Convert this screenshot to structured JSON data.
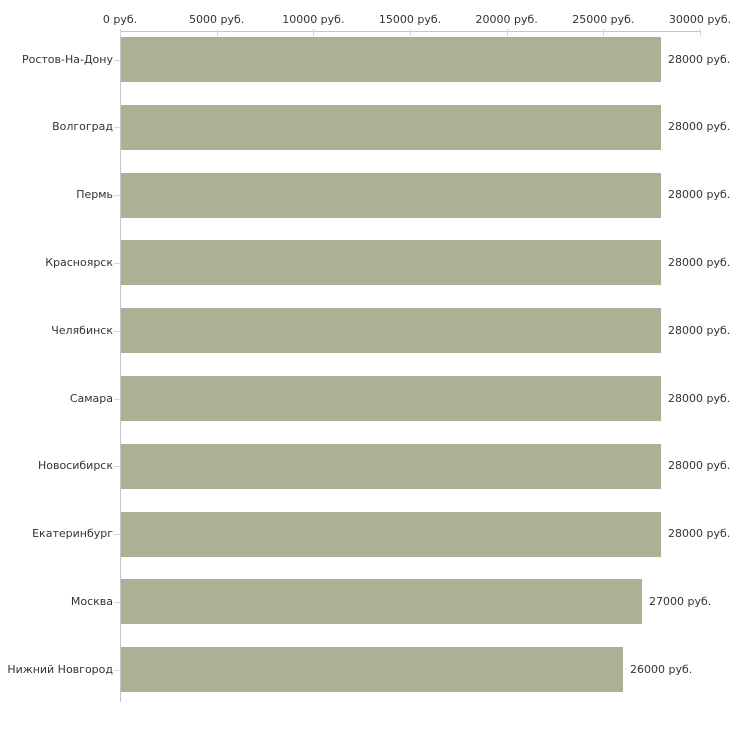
{
  "chart_data": {
    "type": "bar",
    "orientation": "horizontal",
    "title": "",
    "xlabel": "",
    "ylabel": "",
    "unit": "руб.",
    "categories": [
      "Ростов-На-Дону",
      "Волгоград",
      "Пермь",
      "Красноярск",
      "Челябинск",
      "Самара",
      "Новосибирск",
      "Екатеринбург",
      "Москва",
      "Нижний Новгород"
    ],
    "values": [
      28000,
      28000,
      28000,
      28000,
      28000,
      28000,
      28000,
      28000,
      27000,
      26000
    ],
    "value_labels": [
      "28000 руб.",
      "28000 руб.",
      "28000 руб.",
      "28000 руб.",
      "28000 руб.",
      "28000 руб.",
      "28000 руб.",
      "28000 руб.",
      "27000 руб.",
      "26000 руб."
    ],
    "x_ticks": [
      0,
      5000,
      10000,
      15000,
      20000,
      25000,
      30000
    ],
    "x_tick_labels": [
      "0 руб.",
      "5000 руб.",
      "10000 руб.",
      "15000 руб.",
      "20000 руб.",
      "25000 руб.",
      "30000 руб."
    ],
    "xlim": [
      0,
      30000
    ],
    "grid": false,
    "legend": false,
    "colors": {
      "bar": "#acb196",
      "axis_line": "#c6c6c6",
      "tick_mark": "#d8d9c4",
      "text": "#333333",
      "background": "#ffffff"
    }
  }
}
